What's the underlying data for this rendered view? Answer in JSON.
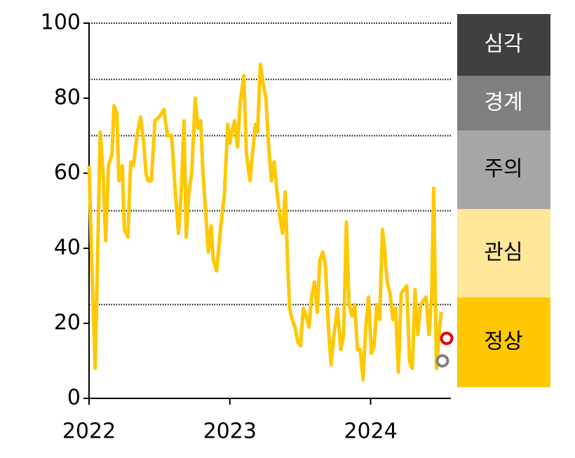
{
  "chart_data": {
    "type": "line",
    "xlim": [
      2022,
      2024.57
    ],
    "xticks": [
      2022,
      2023,
      2024
    ],
    "ylim": [
      0,
      100
    ],
    "yticks": [
      0,
      20,
      40,
      60,
      80,
      100
    ],
    "threshold_lines": [
      25,
      50,
      70,
      85,
      100
    ],
    "series": [
      {
        "color": "#FFC800",
        "x": [
          2022.0,
          2022.02,
          2022.044,
          2022.079,
          2022.099,
          2022.118,
          2022.138,
          2022.163,
          2022.177,
          2022.197,
          2022.212,
          2022.236,
          2022.251,
          2022.276,
          2022.296,
          2022.315,
          2022.34,
          2022.365,
          2022.389,
          2022.404,
          2022.419,
          2022.443,
          2022.468,
          2022.498,
          2022.532,
          2022.557,
          2022.586,
          2022.611,
          2022.635,
          2022.655,
          2022.675,
          2022.69,
          2022.709,
          2022.729,
          2022.754,
          2022.773,
          2022.793,
          2022.808,
          2022.828,
          2022.847,
          2022.867,
          2022.882,
          2022.906,
          2022.936,
          2022.961,
          2022.985,
          2023.0,
          2023.015,
          2023.034,
          2023.054,
          2023.074,
          2023.099,
          2023.118,
          2023.143,
          2023.163,
          2023.182,
          2023.197,
          2023.217,
          2023.236,
          2023.256,
          2023.276,
          2023.296,
          2023.315,
          2023.335,
          2023.36,
          2023.374,
          2023.394,
          2023.409,
          2023.424,
          2023.443,
          2023.463,
          2023.483,
          2023.502,
          2023.522,
          2023.542,
          2023.562,
          2023.581,
          2023.601,
          2023.621,
          2023.64,
          2023.66,
          2023.68,
          2023.7,
          2023.719,
          2023.739,
          2023.764,
          2023.788,
          2023.808,
          2023.828,
          2023.847,
          2023.867,
          2023.887,
          2023.906,
          2023.926,
          2023.946,
          2023.966,
          2023.985,
          2024.005,
          2024.025,
          2024.044,
          2024.064,
          2024.084,
          2024.099,
          2024.118,
          2024.138,
          2024.158,
          2024.177,
          2024.197,
          2024.217,
          2024.236,
          2024.256,
          2024.276,
          2024.296,
          2024.315,
          2024.335,
          2024.355,
          2024.374,
          2024.394,
          2024.414,
          2024.433,
          2024.448,
          2024.468,
          2024.488,
          2024.502
        ],
        "values": [
          62,
          35,
          8,
          71,
          60,
          42,
          62,
          65,
          78,
          76,
          58,
          62,
          45,
          43,
          63,
          62,
          70,
          75,
          68,
          60,
          58,
          58,
          74,
          75,
          77,
          70,
          70,
          56,
          44,
          55,
          74,
          43,
          55,
          60,
          80,
          72,
          74,
          61,
          50,
          39,
          46,
          37,
          34,
          46,
          54,
          73,
          68,
          71,
          74,
          67,
          79,
          86,
          65,
          58,
          66,
          73,
          71,
          89,
          84,
          80,
          67,
          58,
          63,
          55,
          47,
          44,
          55,
          38,
          24,
          21,
          19,
          15,
          14,
          24,
          22,
          19,
          27,
          31,
          23,
          37,
          39,
          35,
          19,
          9,
          17,
          24,
          13,
          17,
          47,
          25,
          22,
          25,
          13,
          13,
          5,
          19,
          27,
          12,
          14,
          25,
          21,
          45,
          40,
          31,
          28,
          21,
          24,
          7,
          28,
          29,
          30,
          10,
          8,
          29,
          17,
          25,
          26,
          27,
          17,
          27,
          56,
          8,
          18,
          23
        ]
      }
    ],
    "markers": [
      {
        "x": 2024.54,
        "value": 16,
        "color": "#E00000"
      },
      {
        "x": 2024.51,
        "value": 10,
        "color": "#808080"
      }
    ],
    "bands": [
      {
        "label": "심각",
        "color": "#404040",
        "text_color": "#ffffff"
      },
      {
        "label": "경계",
        "color": "#7F7F7F",
        "text_color": "#ffffff"
      },
      {
        "label": "주의",
        "color": "#A6A6A6",
        "text_color": "#000000"
      },
      {
        "label": "관심",
        "color": "#FFE699",
        "text_color": "#000000"
      },
      {
        "label": "정상",
        "color": "#FFC800",
        "text_color": "#000000"
      }
    ]
  }
}
